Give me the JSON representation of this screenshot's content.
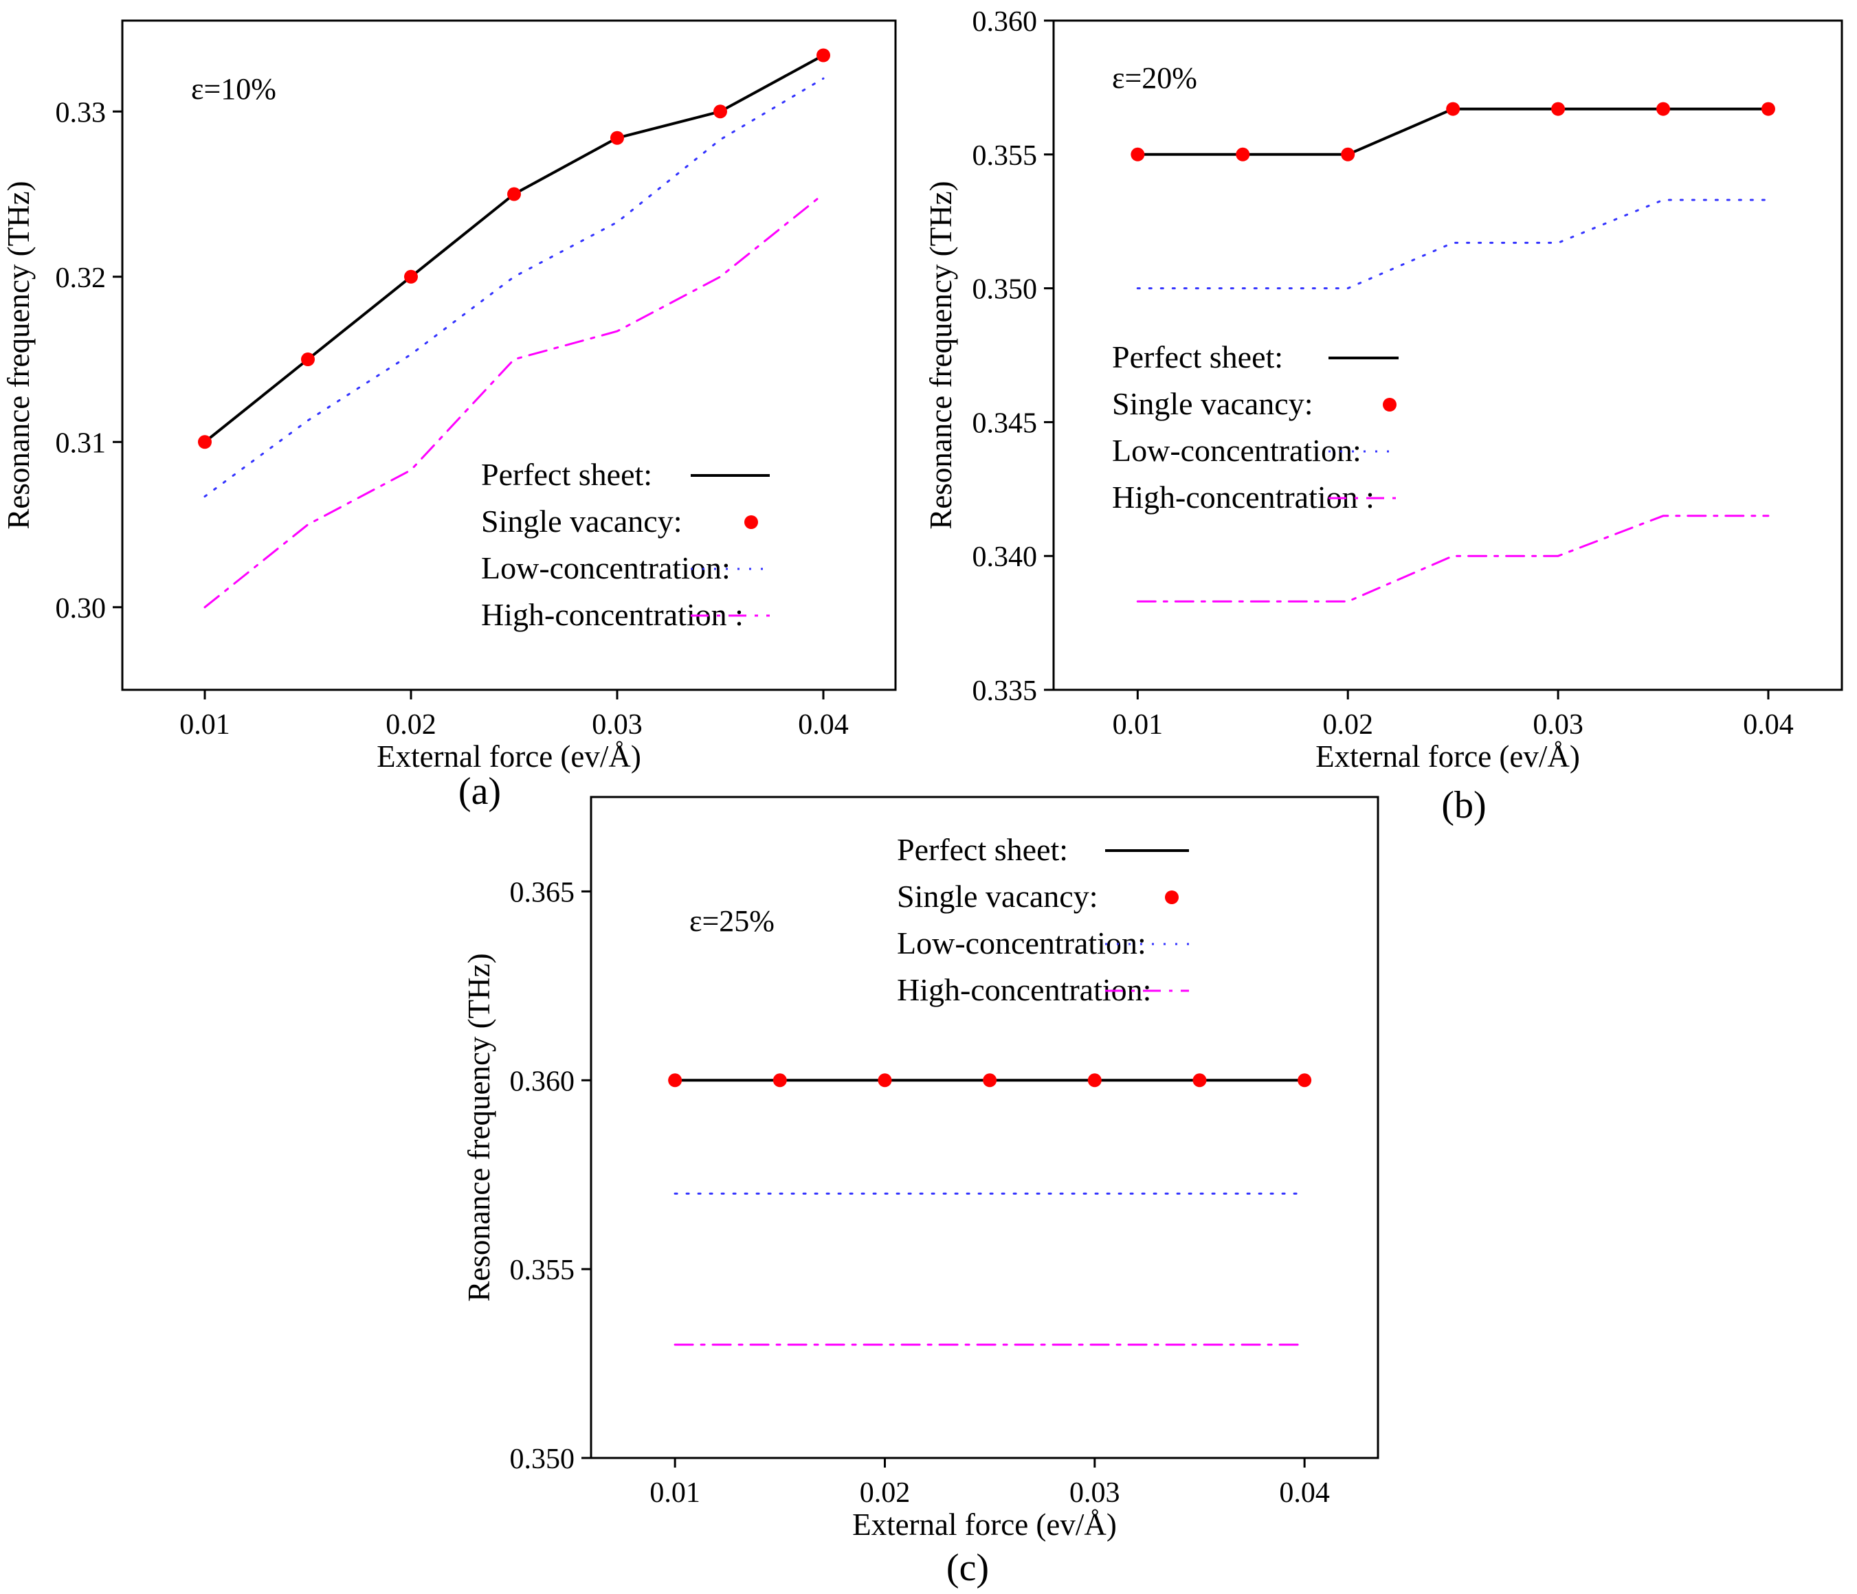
{
  "figure": {
    "panels": [
      "(a)",
      "(b)",
      "(c)"
    ]
  },
  "colors": {
    "perfect": "#000000",
    "single": "#ff0000",
    "low": "#3333ff",
    "high": "#ff00ff"
  },
  "chart_data": [
    {
      "type": "line",
      "panel_label": "(a)",
      "annotation": "ε=10%",
      "xlabel": "External force (ev/Å)",
      "ylabel": "Resonance frequency (THz)",
      "x": [
        0.01,
        0.015,
        0.02,
        0.025,
        0.03,
        0.035,
        0.04
      ],
      "xlim": [
        0.006,
        0.0435
      ],
      "ylim": [
        0.295,
        0.3355
      ],
      "xticks": [
        0.01,
        0.02,
        0.03,
        0.04
      ],
      "xtick_labels": [
        "0.01",
        "0.02",
        "0.03",
        "0.04"
      ],
      "yticks": [
        0.3,
        0.31,
        0.32,
        0.33
      ],
      "ytick_labels": [
        "0.30",
        "0.31",
        "0.32",
        "0.33"
      ],
      "legend_position": "bottom-right",
      "series": [
        {
          "name": "Perfect sheet:",
          "style": "solid",
          "values": [
            0.31,
            0.315,
            0.32,
            0.325,
            0.3284,
            0.33,
            0.3334
          ]
        },
        {
          "name": "Single vacancy:",
          "style": "markers",
          "values": [
            0.31,
            0.315,
            0.32,
            0.325,
            0.3284,
            0.33,
            0.3334
          ]
        },
        {
          "name": "Low-concentration:",
          "style": "dotted",
          "values": [
            0.3067,
            0.3113,
            0.3153,
            0.32,
            0.3233,
            0.3283,
            0.332
          ]
        },
        {
          "name": "High-concentration :",
          "style": "dashdot",
          "values": [
            0.3,
            0.305,
            0.3083,
            0.315,
            0.3167,
            0.32,
            0.325
          ]
        }
      ]
    },
    {
      "type": "line",
      "panel_label": "(b)",
      "annotation": "ε=20%",
      "xlabel": "External force (ev/Å)",
      "ylabel": "Resonance frequency (THz)",
      "x": [
        0.01,
        0.015,
        0.02,
        0.025,
        0.03,
        0.035,
        0.04
      ],
      "xlim": [
        0.006,
        0.0435
      ],
      "ylim": [
        0.335,
        0.36
      ],
      "xticks": [
        0.01,
        0.02,
        0.03,
        0.04
      ],
      "xtick_labels": [
        "0.01",
        "0.02",
        "0.03",
        "0.04"
      ],
      "yticks": [
        0.335,
        0.34,
        0.345,
        0.35,
        0.355,
        0.36
      ],
      "ytick_labels": [
        "0.335",
        "0.340",
        "0.345",
        "0.350",
        "0.355",
        "0.360"
      ],
      "legend_position": "middle-left",
      "series": [
        {
          "name": "Perfect sheet:",
          "style": "solid",
          "values": [
            0.355,
            0.355,
            0.355,
            0.3567,
            0.3567,
            0.3567,
            0.3567
          ]
        },
        {
          "name": "Single vacancy:",
          "style": "markers",
          "values": [
            0.355,
            0.355,
            0.355,
            0.3567,
            0.3567,
            0.3567,
            0.3567
          ]
        },
        {
          "name": "Low-concentration:",
          "style": "dotted",
          "values": [
            0.35,
            0.35,
            0.35,
            0.3517,
            0.3517,
            0.3533,
            0.3533
          ]
        },
        {
          "name": "High-concentration :",
          "style": "dashdot",
          "values": [
            0.3383,
            0.3383,
            0.3383,
            0.34,
            0.34,
            0.3415,
            0.3415
          ]
        }
      ]
    },
    {
      "type": "line",
      "panel_label": "(c)",
      "annotation": "ε=25%",
      "xlabel": "External force (ev/Å)",
      "ylabel": "Resonance frequency (THz)",
      "x": [
        0.01,
        0.015,
        0.02,
        0.025,
        0.03,
        0.035,
        0.04
      ],
      "xlim": [
        0.006,
        0.0435
      ],
      "ylim": [
        0.35,
        0.3675
      ],
      "xticks": [
        0.01,
        0.02,
        0.03,
        0.04
      ],
      "xtick_labels": [
        "0.01",
        "0.02",
        "0.03",
        "0.04"
      ],
      "yticks": [
        0.35,
        0.355,
        0.36,
        0.365
      ],
      "ytick_labels": [
        "0.350",
        "0.355",
        "0.360",
        "0.365"
      ],
      "legend_position": "top-right",
      "series": [
        {
          "name": "Perfect sheet:",
          "style": "solid",
          "values": [
            0.36,
            0.36,
            0.36,
            0.36,
            0.36,
            0.36,
            0.36
          ]
        },
        {
          "name": "Single vacancy:",
          "style": "markers",
          "values": [
            0.36,
            0.36,
            0.36,
            0.36,
            0.36,
            0.36,
            0.36
          ]
        },
        {
          "name": "Low-concentration:",
          "style": "dotted",
          "values": [
            0.357,
            0.357,
            0.357,
            0.357,
            0.357,
            0.357,
            0.357
          ]
        },
        {
          "name": "High-concentration:",
          "style": "dashdot",
          "values": [
            0.353,
            0.353,
            0.353,
            0.353,
            0.353,
            0.353,
            0.353
          ]
        }
      ]
    }
  ]
}
